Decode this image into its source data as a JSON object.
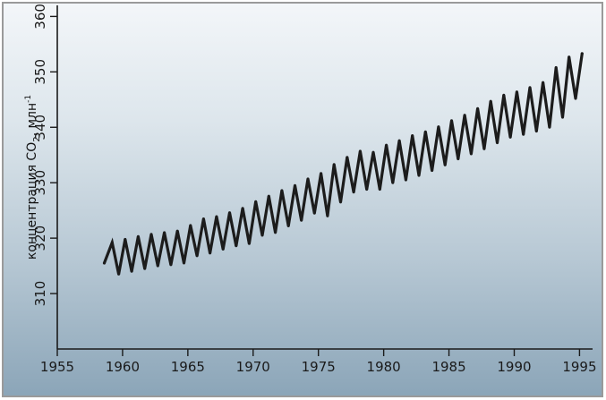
{
  "chart_data": {
    "type": "line",
    "title": "",
    "xlabel": "",
    "ylabel": "концентрация CO",
    "ylabel_subscript": "2",
    "ylabel_unit": ", млн",
    "ylabel_superscript": "-1",
    "xlim": [
      1955,
      1996
    ],
    "ylim": [
      300,
      362
    ],
    "grid": false,
    "x_ticks": [
      1955,
      1960,
      1965,
      1970,
      1975,
      1980,
      1985,
      1990,
      1995
    ],
    "x_tick_labels": [
      "1955",
      "1960",
      "1965",
      "1970",
      "1975",
      "1980",
      "1985",
      "1990",
      "1995"
    ],
    "y_ticks": [
      310,
      320,
      330,
      340,
      350,
      360
    ],
    "y_tick_labels": [
      "310",
      "320",
      "330",
      "340",
      "350",
      "360"
    ],
    "series": [
      {
        "x": [
          1958.6,
          1959.2,
          1959.7,
          1960.2,
          1960.7,
          1961.2,
          1961.7,
          1962.2,
          1962.7,
          1963.2,
          1963.7,
          1964.2,
          1964.7,
          1965.2,
          1965.7,
          1966.2,
          1966.7,
          1967.2,
          1967.7,
          1968.2,
          1968.7,
          1969.2,
          1969.7,
          1970.2,
          1970.7,
          1971.2,
          1971.7,
          1972.2,
          1972.7,
          1973.2,
          1973.7,
          1974.2,
          1974.7,
          1975.2,
          1975.7,
          1976.2,
          1976.7,
          1977.2,
          1977.7,
          1978.2,
          1978.7,
          1979.2,
          1979.7,
          1980.2,
          1980.7,
          1981.2,
          1981.7,
          1982.2,
          1982.7,
          1983.2,
          1983.7,
          1984.2,
          1984.7,
          1985.2,
          1985.7,
          1986.2,
          1986.7,
          1987.2,
          1987.7,
          1988.2,
          1988.7,
          1989.2,
          1989.7,
          1990.2,
          1990.7,
          1991.2,
          1991.7,
          1992.2,
          1992.7,
          1993.2,
          1993.7,
          1994.2,
          1994.7,
          1995.2
        ],
        "y": [
          315.5,
          319.2,
          313.5,
          319.8,
          314.0,
          320.3,
          314.5,
          320.7,
          315.0,
          321.0,
          315.2,
          321.3,
          315.5,
          322.3,
          316.8,
          323.5,
          317.3,
          323.9,
          318.0,
          324.6,
          318.6,
          325.4,
          319.0,
          326.6,
          320.5,
          327.6,
          321.0,
          328.6,
          322.2,
          329.5,
          323.2,
          330.7,
          324.5,
          331.7,
          324.0,
          333.3,
          326.5,
          334.6,
          328.3,
          335.7,
          328.8,
          335.5,
          328.8,
          336.8,
          330.0,
          337.6,
          330.5,
          338.5,
          331.3,
          339.2,
          332.2,
          340.1,
          333.2,
          341.2,
          334.3,
          342.2,
          335.2,
          343.4,
          336.1,
          344.7,
          337.2,
          345.8,
          338.2,
          346.4,
          338.7,
          347.2,
          339.3,
          348.1,
          340.0,
          350.8,
          341.8,
          352.7,
          345.2,
          353.3
        ]
      }
    ]
  }
}
